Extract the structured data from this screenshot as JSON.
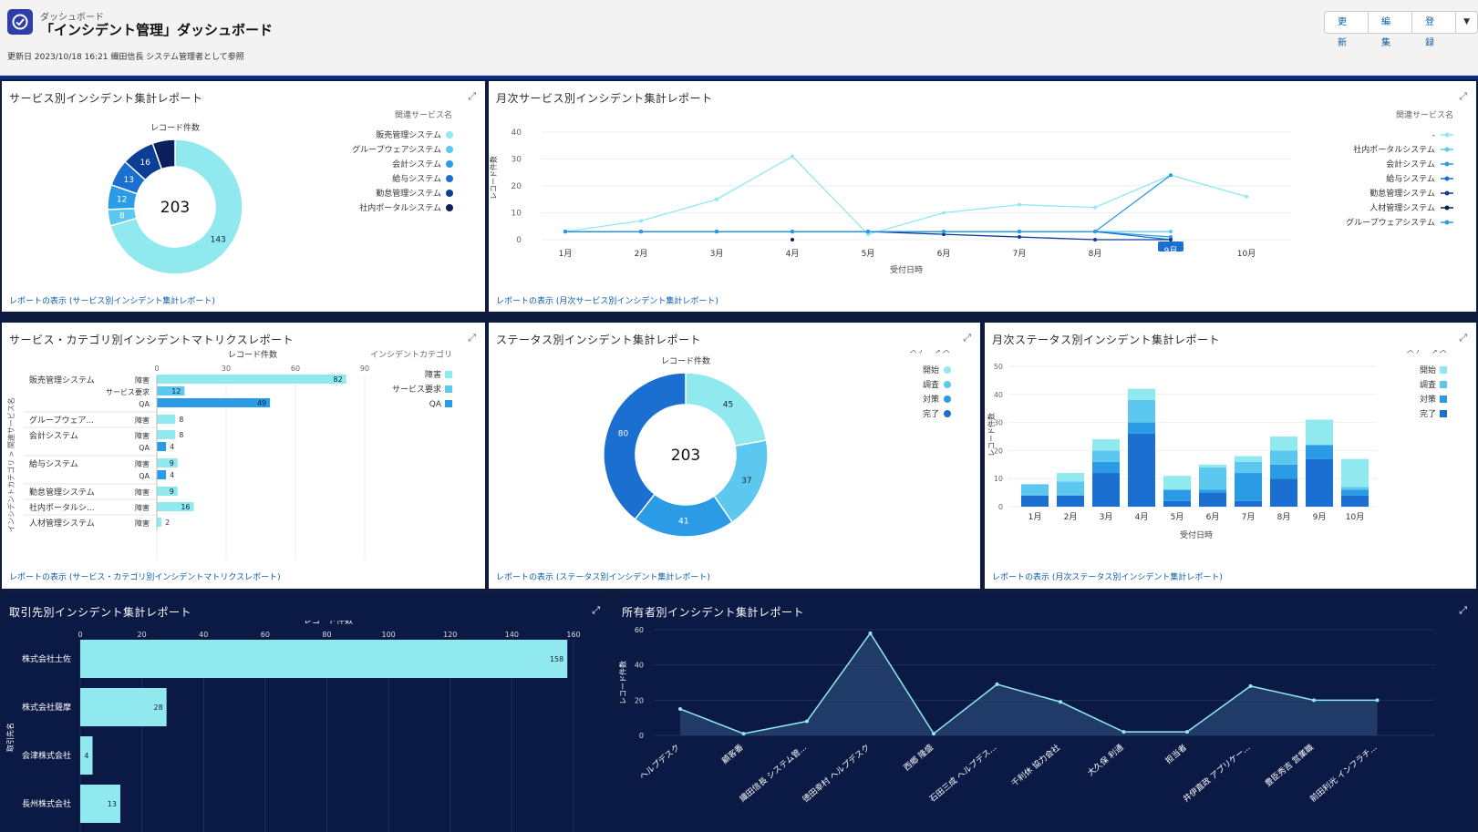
{
  "header": {
    "subtitle": "ダッシュボード",
    "title": "「インシデント管理」ダッシュボード",
    "meta": "更新日 2023/10/18 16:21 織田信長 システム管理者として参照",
    "buttons": [
      "更新",
      "編集",
      "登録"
    ]
  },
  "colors": {
    "c1": "#8fe9ee",
    "c2": "#5dc8ef",
    "c3": "#2b9be6",
    "c4": "#1a6fd0",
    "c5": "#0d3e96",
    "c6": "#0a1f5c"
  },
  "cards": {
    "service": {
      "title": "サービス別インシデント集計レポート",
      "link": "レポートの表示 (サービス別インシデント集計レポート)"
    },
    "monthly_service": {
      "title": "月次サービス別インシデント集計レポート",
      "link": "レポートの表示 (月次サービス別インシデント集計レポート)"
    },
    "matrix": {
      "title": "サービス・カテゴリ別インシデントマトリクスレポート",
      "link": "レポートの表示 (サービス・カテゴリ別インシデントマトリクスレポート)"
    },
    "status": {
      "title": "ステータス別インシデント集計レポート",
      "link": "レポートの表示 (ステータス別インシデント集計レポート)"
    },
    "monthly_status": {
      "title": "月次ステータス別インシデント集計レポート",
      "link": "レポートの表示 (月次ステータス別インシデント集計レポート)"
    },
    "account": {
      "title": "取引先別インシデント集計レポート"
    },
    "owner": {
      "title": "所有者別インシデント集計レポート"
    }
  },
  "chart_data": [
    {
      "id": "service-donut",
      "type": "pie",
      "title": "レコード件数",
      "total": "203",
      "legend_title": "関連サービス名",
      "labels": [
        "販売管理システム",
        "グループウェアシステム",
        "会計システム",
        "給与システム",
        "勤怠管理システム",
        "社内ポータルシステム"
      ],
      "values": [
        143,
        8,
        12,
        13,
        16,
        11
      ],
      "value_labels": [
        "143",
        "8",
        "12",
        "13",
        "16",
        ""
      ]
    },
    {
      "id": "monthly-service-line",
      "type": "line",
      "xlabel": "受付日時",
      "ylabel": "レコード件数",
      "ylim": [
        0,
        40
      ],
      "yticks": [
        0,
        10,
        20,
        30,
        40
      ],
      "x": [
        "1月",
        "2月",
        "3月",
        "4月",
        "5月",
        "6月",
        "7月",
        "8月",
        "9月",
        "10月"
      ],
      "legend_title": "関連サービス名",
      "highlight": "9月",
      "series": [
        {
          "name": "-",
          "values": [
            3,
            7,
            15,
            31,
            2,
            10,
            13,
            12,
            24,
            16
          ]
        },
        {
          "name": "社内ポータルシステム",
          "values": [
            3,
            3,
            3,
            3,
            3,
            3,
            3,
            3,
            3,
            null
          ]
        },
        {
          "name": "会計システム",
          "values": [
            3,
            3,
            3,
            3,
            3,
            3,
            3,
            3,
            1,
            null
          ]
        },
        {
          "name": "給与システム",
          "values": [
            3,
            3,
            3,
            3,
            3,
            3,
            3,
            3,
            0,
            null
          ]
        },
        {
          "name": "勤怠管理システム",
          "values": [
            3,
            3,
            3,
            3,
            3,
            2,
            1,
            0,
            0,
            null
          ]
        },
        {
          "name": "人材管理システム",
          "values": [
            null,
            null,
            null,
            0,
            null,
            null,
            null,
            null,
            null,
            null
          ]
        },
        {
          "name": "グループウェアシステム",
          "values": [
            3,
            3,
            3,
            3,
            3,
            3,
            3,
            3,
            24,
            null
          ]
        }
      ]
    },
    {
      "id": "matrix-bars",
      "type": "bar",
      "title": "レコード件数",
      "ylabel": "インシデントカテゴリ > 関連サービス名",
      "xticks": [
        0,
        30,
        60,
        90
      ],
      "xlim": [
        0,
        90
      ],
      "legend_title": "インシデントカテゴリ",
      "legend": [
        "障害",
        "サービス要求",
        "QA"
      ],
      "rows": [
        {
          "service": "販売管理システム",
          "category": "障害",
          "value": 82
        },
        {
          "service": "",
          "category": "サービス要求",
          "value": 12
        },
        {
          "service": "",
          "category": "QA",
          "value": 49
        },
        {
          "service": "グループウェア...",
          "category": "障害",
          "value": 8
        },
        {
          "service": "会計システム",
          "category": "障害",
          "value": 8
        },
        {
          "service": "",
          "category": "QA",
          "value": 4
        },
        {
          "service": "給与システム",
          "category": "障害",
          "value": 9
        },
        {
          "service": "",
          "category": "QA",
          "value": 4
        },
        {
          "service": "勤怠管理システム",
          "category": "障害",
          "value": 9
        },
        {
          "service": "社内ポータルシ...",
          "category": "障害",
          "value": 16
        },
        {
          "service": "人材管理システム",
          "category": "障害",
          "value": 2
        }
      ]
    },
    {
      "id": "status-donut",
      "type": "pie",
      "title": "レコード件数",
      "total": "203",
      "legend_title": "ステータス",
      "labels": [
        "開始",
        "調査",
        "対策",
        "完了"
      ],
      "values": [
        45,
        37,
        41,
        80
      ]
    },
    {
      "id": "monthly-status-stacked",
      "type": "bar",
      "stacked": true,
      "xlabel": "受付日時",
      "ylabel": "レコード件数",
      "ylim": [
        0,
        50
      ],
      "yticks": [
        0,
        10,
        20,
        30,
        40,
        50
      ],
      "categories": [
        "1月",
        "2月",
        "3月",
        "4月",
        "5月",
        "6月",
        "7月",
        "8月",
        "9月",
        "10月"
      ],
      "legend_title": "ステータス",
      "series": [
        {
          "name": "完了",
          "values": [
            4,
            4,
            12,
            26,
            2,
            5,
            2,
            10,
            17,
            4
          ]
        },
        {
          "name": "対策",
          "values": [
            0,
            0,
            4,
            4,
            4,
            1,
            10,
            5,
            5,
            2
          ]
        },
        {
          "name": "調査",
          "values": [
            4,
            5,
            4,
            8,
            0,
            8,
            4,
            5,
            0,
            1
          ]
        },
        {
          "name": "開始",
          "values": [
            0,
            3,
            4,
            4,
            5,
            1,
            2,
            5,
            9,
            10
          ]
        }
      ]
    },
    {
      "id": "account-bars",
      "type": "bar",
      "title": "レコード件数",
      "ylabel": "取引先名",
      "xticks": [
        0,
        20,
        40,
        60,
        80,
        100,
        120,
        140,
        160
      ],
      "xlim": [
        0,
        160
      ],
      "categories": [
        "株式会社土佐",
        "株式会社薩摩",
        "会津株式会社",
        "長州株式会社"
      ],
      "values": [
        158,
        28,
        4,
        13
      ]
    },
    {
      "id": "owner-area",
      "type": "area",
      "ylabel": "レコード件数",
      "ylim": [
        0,
        60
      ],
      "yticks": [
        0,
        20,
        40,
        60
      ],
      "x": [
        "ヘルプデスク",
        "顧客番",
        "織田信長 システム管...",
        "徳田幸村 ヘルプデスク",
        "西郷 隆盛",
        "石田三成 ヘルプデス...",
        "千利休 協力会社",
        "大久保 利通",
        "担当者",
        "井伊直政 アプリケー...",
        "豊臣秀吉 営業職",
        "前田利光 インフラチ..."
      ],
      "values": [
        15,
        1,
        8,
        58,
        1,
        29,
        19,
        2,
        2,
        28,
        20,
        20
      ]
    }
  ]
}
